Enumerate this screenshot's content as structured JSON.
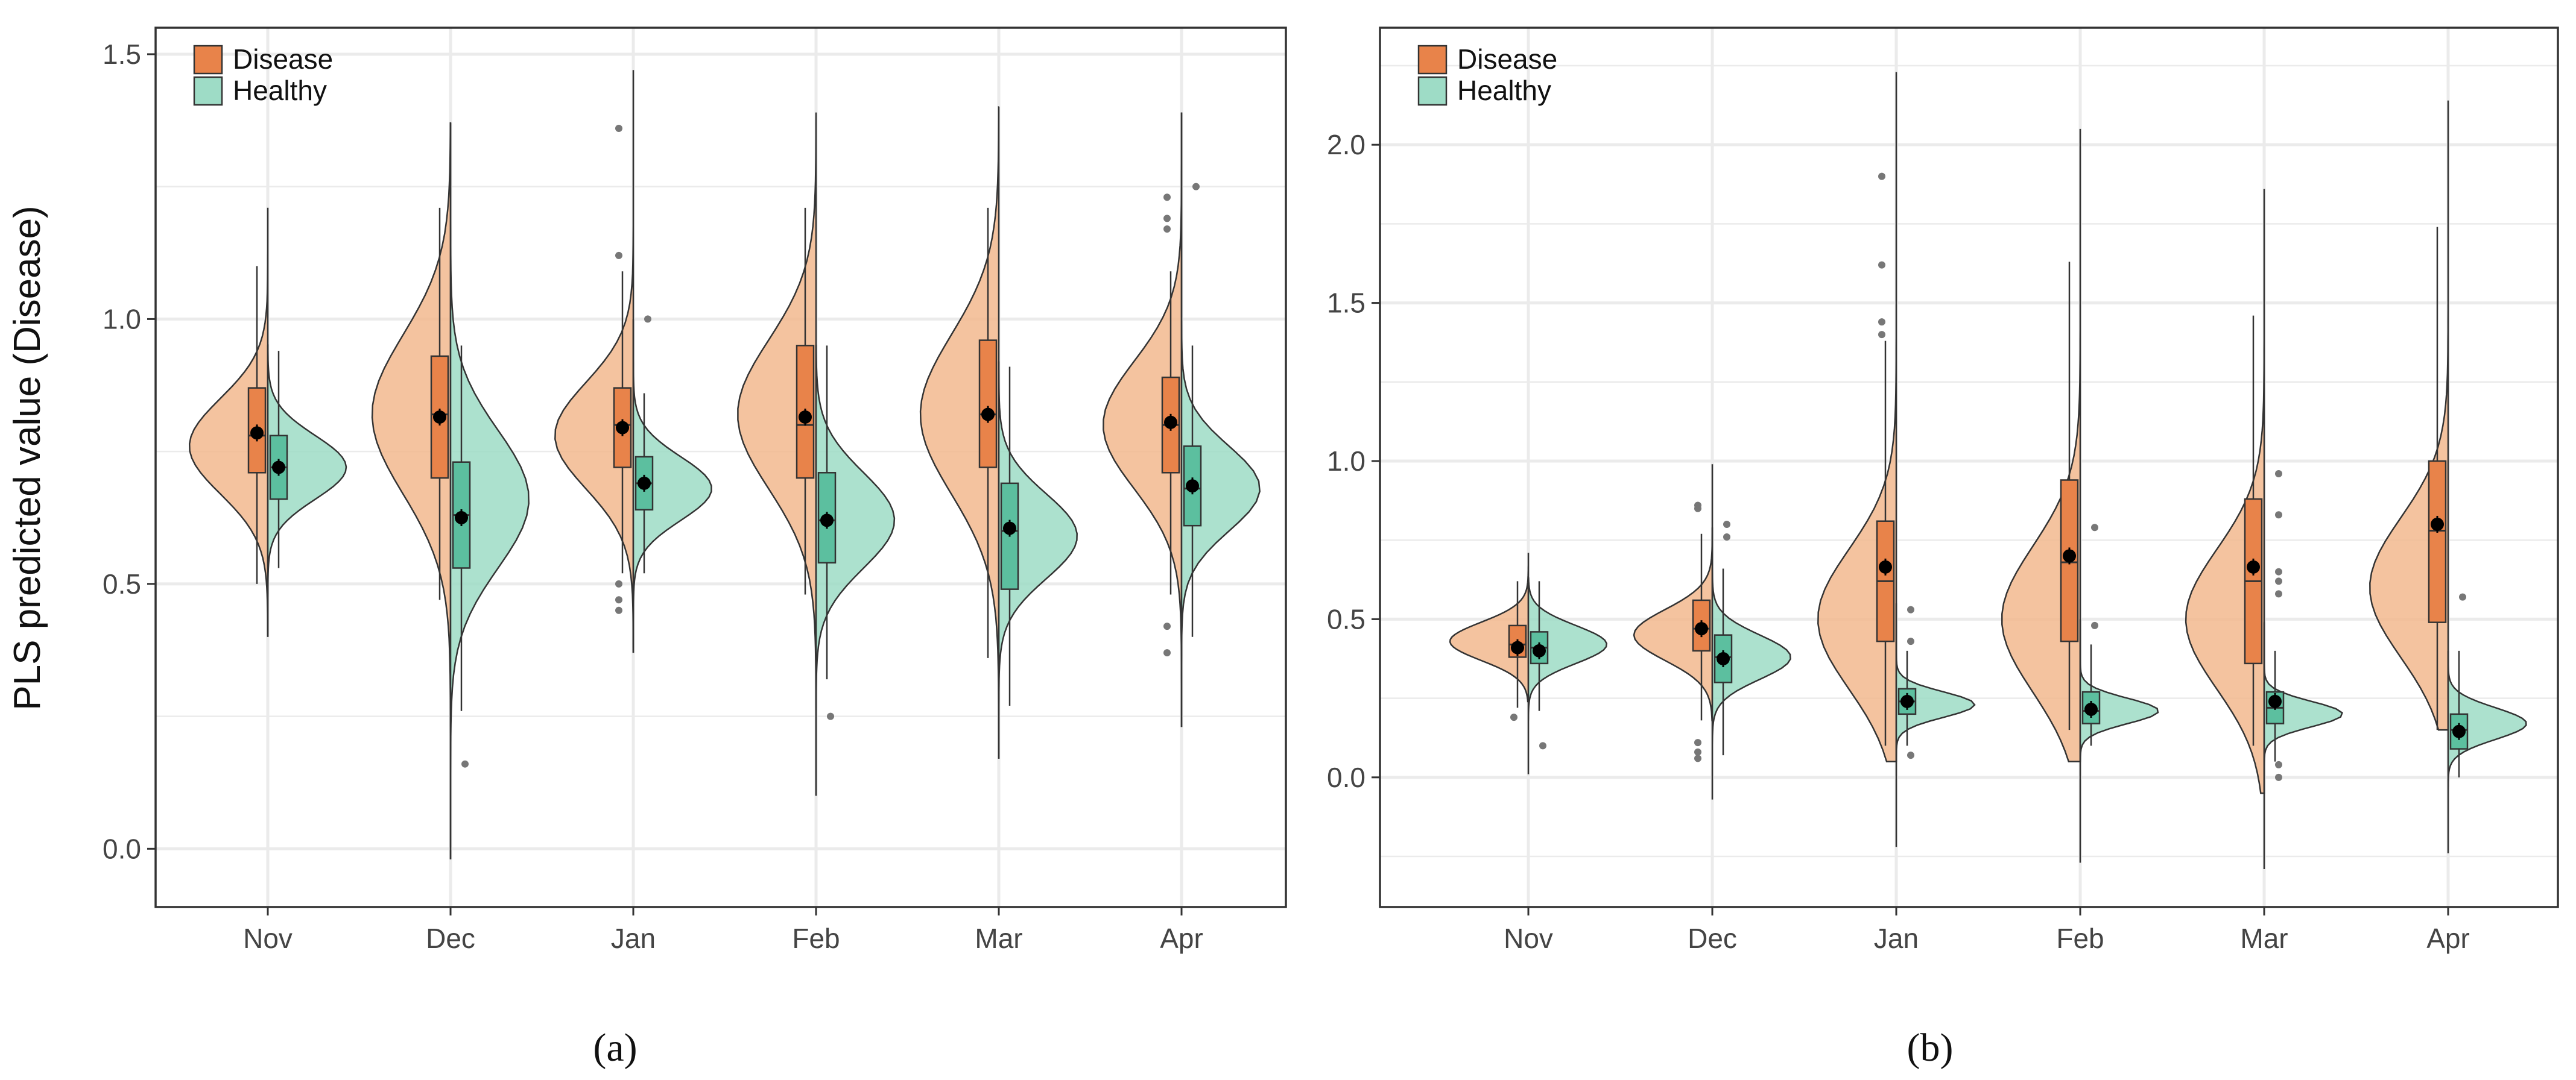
{
  "figure": {
    "y_axis_label": "PLS predicted value (Disease)",
    "colors": {
      "disease_fill": "#F2B98E",
      "disease_box": "#E8834A",
      "healthy_fill": "#9EDCC6",
      "healthy_box": "#5CBF9F",
      "outline": "#333333",
      "grid": "#EBEBEB",
      "panel_border": "#333333"
    }
  },
  "chart_data": [
    {
      "type": "violin",
      "panel_label": "(a)",
      "categories": [
        "Nov",
        "Dec",
        "Jan",
        "Feb",
        "Mar",
        "Apr"
      ],
      "ylim": [
        -0.11,
        1.55
      ],
      "yticks": [
        0.0,
        0.5,
        1.0,
        1.5
      ],
      "ytick_labels": [
        "0.0",
        "0.5",
        "1.0",
        "1.5"
      ],
      "ylabel": "PLS predicted value (Disease)",
      "xlabel": "",
      "grid": true,
      "legend": {
        "position": "top-left",
        "entries": [
          "Disease",
          "Healthy"
        ]
      },
      "series": [
        {
          "name": "Disease",
          "side": "left",
          "groups": [
            {
              "cat": "Nov",
              "q1": 0.71,
              "median": 0.78,
              "q3": 0.87,
              "wlo": 0.5,
              "whi": 1.1,
              "mean": 0.785,
              "vmin": 0.4,
              "vmax": 1.21,
              "vmode": 0.76,
              "vsd": 0.09,
              "outliers": []
            },
            {
              "cat": "Dec",
              "q1": 0.7,
              "median": 0.82,
              "q3": 0.93,
              "wlo": 0.47,
              "whi": 1.21,
              "mean": 0.815,
              "vmin": -0.02,
              "vmax": 1.37,
              "vmode": 0.82,
              "vsd": 0.15,
              "outliers": []
            },
            {
              "cat": "Jan",
              "q1": 0.72,
              "median": 0.8,
              "q3": 0.87,
              "wlo": 0.52,
              "whi": 1.09,
              "mean": 0.795,
              "vmin": 0.37,
              "vmax": 1.47,
              "vmode": 0.78,
              "vsd": 0.1,
              "outliers": [
                0.45,
                0.47,
                0.5,
                1.12,
                1.36
              ]
            },
            {
              "cat": "Feb",
              "q1": 0.7,
              "median": 0.8,
              "q3": 0.95,
              "wlo": 0.48,
              "whi": 1.21,
              "mean": 0.815,
              "vmin": 0.1,
              "vmax": 1.39,
              "vmode": 0.82,
              "vsd": 0.14,
              "outliers": []
            },
            {
              "cat": "Mar",
              "q1": 0.72,
              "median": 0.82,
              "q3": 0.96,
              "wlo": 0.36,
              "whi": 1.21,
              "mean": 0.82,
              "vmin": 0.17,
              "vmax": 1.4,
              "vmode": 0.82,
              "vsd": 0.15,
              "outliers": []
            },
            {
              "cat": "Apr",
              "q1": 0.71,
              "median": 0.8,
              "q3": 0.89,
              "wlo": 0.48,
              "whi": 1.09,
              "mean": 0.805,
              "vmin": 0.23,
              "vmax": 1.39,
              "vmode": 0.8,
              "vsd": 0.12,
              "outliers": [
                0.37,
                0.42,
                1.17,
                1.19,
                1.23
              ]
            }
          ]
        },
        {
          "name": "Healthy",
          "side": "right",
          "groups": [
            {
              "cat": "Nov",
              "q1": 0.66,
              "median": 0.72,
              "q3": 0.78,
              "wlo": 0.53,
              "whi": 0.94,
              "mean": 0.72,
              "vmin": 0.4,
              "vmax": 0.95,
              "vmode": 0.72,
              "vsd": 0.06,
              "outliers": []
            },
            {
              "cat": "Dec",
              "q1": 0.53,
              "median": 0.63,
              "q3": 0.73,
              "wlo": 0.26,
              "whi": 0.95,
              "mean": 0.625,
              "vmin": -0.02,
              "vmax": 1.37,
              "vmode": 0.66,
              "vsd": 0.13,
              "outliers": [
                0.16
              ]
            },
            {
              "cat": "Jan",
              "q1": 0.64,
              "median": 0.69,
              "q3": 0.74,
              "wlo": 0.52,
              "whi": 0.86,
              "mean": 0.69,
              "vmin": 0.37,
              "vmax": 1.0,
              "vmode": 0.68,
              "vsd": 0.06,
              "outliers": [
                1.0
              ]
            },
            {
              "cat": "Feb",
              "q1": 0.54,
              "median": 0.62,
              "q3": 0.71,
              "wlo": 0.32,
              "whi": 0.95,
              "mean": 0.62,
              "vmin": 0.1,
              "vmax": 0.95,
              "vmode": 0.62,
              "vsd": 0.09,
              "outliers": [
                0.25
              ]
            },
            {
              "cat": "Mar",
              "q1": 0.49,
              "median": 0.6,
              "q3": 0.69,
              "wlo": 0.27,
              "whi": 0.91,
              "mean": 0.605,
              "vmin": 0.17,
              "vmax": 0.92,
              "vmode": 0.59,
              "vsd": 0.08,
              "outliers": []
            },
            {
              "cat": "Apr",
              "q1": 0.61,
              "median": 0.68,
              "q3": 0.76,
              "wlo": 0.4,
              "whi": 0.95,
              "mean": 0.685,
              "vmin": 0.23,
              "vmax": 1.39,
              "vmode": 0.68,
              "vsd": 0.08,
              "outliers": [
                1.25
              ]
            }
          ]
        }
      ]
    },
    {
      "type": "violin",
      "panel_label": "(b)",
      "categories": [
        "Nov",
        "Dec",
        "Jan",
        "Feb",
        "Mar",
        "Apr"
      ],
      "ylim": [
        -0.41,
        2.37
      ],
      "yticks": [
        0.0,
        0.5,
        1.0,
        1.5,
        2.0
      ],
      "ytick_labels": [
        "0.0",
        "0.5",
        "1.0",
        "1.5",
        "2.0"
      ],
      "ylabel": "",
      "xlabel": "",
      "grid": true,
      "legend": {
        "position": "top-left",
        "entries": [
          "Disease",
          "Healthy"
        ]
      },
      "series": [
        {
          "name": "Disease",
          "side": "left",
          "groups": [
            {
              "cat": "Nov",
              "q1": 0.38,
              "median": 0.42,
              "q3": 0.48,
              "wlo": 0.22,
              "whi": 0.62,
              "mean": 0.41,
              "vmin": 0.24,
              "vmax": 0.71,
              "vmode": 0.43,
              "vsd": 0.06,
              "outliers": [
                0.19
              ]
            },
            {
              "cat": "Dec",
              "q1": 0.4,
              "median": 0.47,
              "q3": 0.56,
              "wlo": 0.18,
              "whi": 0.77,
              "mean": 0.47,
              "vmin": 0.18,
              "vmax": 0.99,
              "vmode": 0.45,
              "vsd": 0.08,
              "outliers": [
                0.06,
                0.08,
                0.11,
                0.85,
                0.86
              ]
            },
            {
              "cat": "Jan",
              "q1": 0.43,
              "median": 0.62,
              "q3": 0.81,
              "wlo": 0.1,
              "whi": 1.38,
              "mean": 0.665,
              "vmin": 0.05,
              "vmax": 2.23,
              "vmode": 0.5,
              "vsd": 0.22,
              "outliers": [
                1.4,
                1.44,
                1.62,
                1.9
              ]
            },
            {
              "cat": "Feb",
              "q1": 0.43,
              "median": 0.68,
              "q3": 0.94,
              "wlo": 0.15,
              "whi": 1.63,
              "mean": 0.7,
              "vmin": 0.05,
              "vmax": 2.05,
              "vmode": 0.5,
              "vsd": 0.23,
              "outliers": []
            },
            {
              "cat": "Mar",
              "q1": 0.36,
              "median": 0.62,
              "q3": 0.88,
              "wlo": 0.1,
              "whi": 1.46,
              "mean": 0.665,
              "vmin": -0.05,
              "vmax": 1.86,
              "vmode": 0.5,
              "vsd": 0.22,
              "outliers": []
            },
            {
              "cat": "Apr",
              "q1": 0.49,
              "median": 0.78,
              "q3": 1.0,
              "wlo": 0.15,
              "whi": 1.74,
              "mean": 0.8,
              "vmin": 0.15,
              "vmax": 2.14,
              "vmode": 0.6,
              "vsd": 0.22,
              "outliers": []
            }
          ]
        },
        {
          "name": "Healthy",
          "side": "right",
          "groups": [
            {
              "cat": "Nov",
              "q1": 0.36,
              "median": 0.41,
              "q3": 0.46,
              "wlo": 0.21,
              "whi": 0.62,
              "mean": 0.4,
              "vmin": 0.01,
              "vmax": 0.63,
              "vmode": 0.42,
              "vsd": 0.06,
              "outliers": [
                0.1
              ]
            },
            {
              "cat": "Dec",
              "q1": 0.3,
              "median": 0.38,
              "q3": 0.45,
              "wlo": 0.07,
              "whi": 0.66,
              "mean": 0.375,
              "vmin": -0.07,
              "vmax": 0.79,
              "vmode": 0.38,
              "vsd": 0.07,
              "outliers": [
                0.76,
                0.8
              ]
            },
            {
              "cat": "Jan",
              "q1": 0.2,
              "median": 0.24,
              "q3": 0.28,
              "wlo": 0.1,
              "whi": 0.4,
              "mean": 0.24,
              "vmin": -0.22,
              "vmax": 0.55,
              "vmode": 0.23,
              "vsd": 0.04,
              "outliers": [
                0.07,
                0.43,
                0.53
              ]
            },
            {
              "cat": "Feb",
              "q1": 0.17,
              "median": 0.21,
              "q3": 0.27,
              "wlo": 0.1,
              "whi": 0.42,
              "mean": 0.215,
              "vmin": -0.27,
              "vmax": 0.5,
              "vmode": 0.21,
              "vsd": 0.04,
              "outliers": [
                0.48,
                0.79
              ]
            },
            {
              "cat": "Mar",
              "q1": 0.17,
              "median": 0.22,
              "q3": 0.27,
              "wlo": 0.05,
              "whi": 0.4,
              "mean": 0.24,
              "vmin": -0.29,
              "vmax": 0.49,
              "vmode": 0.2,
              "vsd": 0.04,
              "outliers": [
                0.0,
                0.04,
                0.58,
                0.62,
                0.65,
                0.83,
                0.96
              ]
            },
            {
              "cat": "Apr",
              "q1": 0.09,
              "median": 0.15,
              "q3": 0.2,
              "wlo": 0.0,
              "whi": 0.4,
              "mean": 0.145,
              "vmin": -0.24,
              "vmax": 0.4,
              "vmode": 0.17,
              "vsd": 0.05,
              "outliers": [
                0.57
              ]
            }
          ]
        }
      ]
    }
  ]
}
